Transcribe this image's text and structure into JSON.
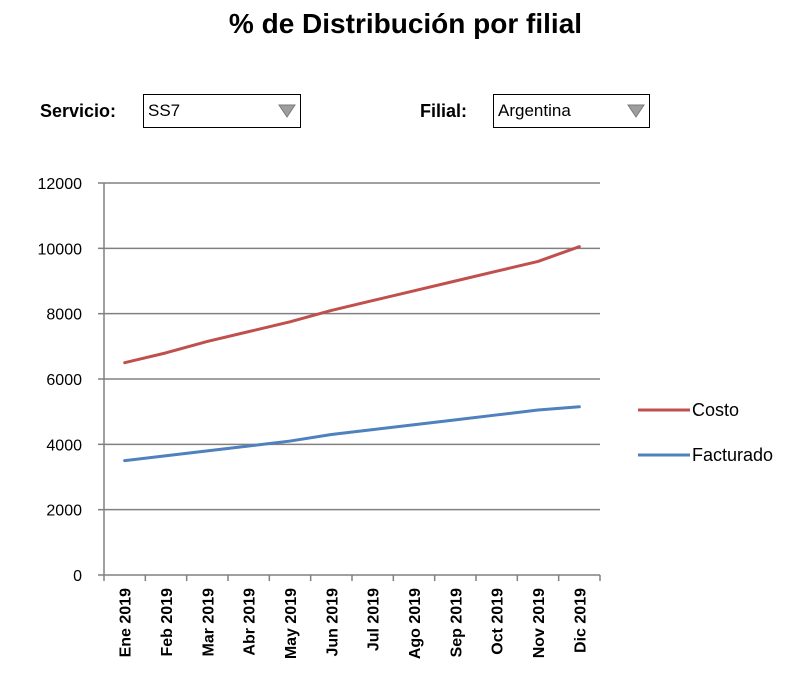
{
  "page": {
    "title": "% de Distribución por filial"
  },
  "filters": {
    "servicio": {
      "label": "Servicio:",
      "value": "SS7"
    },
    "filial": {
      "label": "Filial:",
      "value": "Argentina"
    }
  },
  "colors": {
    "costo": "#C0504D",
    "facturado": "#4F81BD",
    "gridline": "#808080"
  },
  "chart_data": {
    "type": "line",
    "title": "% de Distribución por filial",
    "categories": [
      "Ene 2019",
      "Feb 2019",
      "Mar 2019",
      "Abr 2019",
      "May 2019",
      "Jun 2019",
      "Jul 2019",
      "Ago 2019",
      "Sep 2019",
      "Oct 2019",
      "Nov 2019",
      "Dic 2019"
    ],
    "yticks": [
      "0",
      "2000",
      "4000",
      "6000",
      "8000",
      "10000",
      "12000"
    ],
    "ylim": [
      0,
      12000
    ],
    "grid": true,
    "legend_position": "right",
    "series": [
      {
        "name": "Costo",
        "color": "#C0504D",
        "values": [
          6500,
          6800,
          7150,
          7450,
          7750,
          8100,
          8400,
          8700,
          9000,
          9300,
          9600,
          10050
        ]
      },
      {
        "name": "Facturado",
        "color": "#4F81BD",
        "values": [
          3500,
          3650,
          3800,
          3950,
          4100,
          4300,
          4450,
          4600,
          4750,
          4900,
          5050,
          5150
        ]
      }
    ]
  }
}
